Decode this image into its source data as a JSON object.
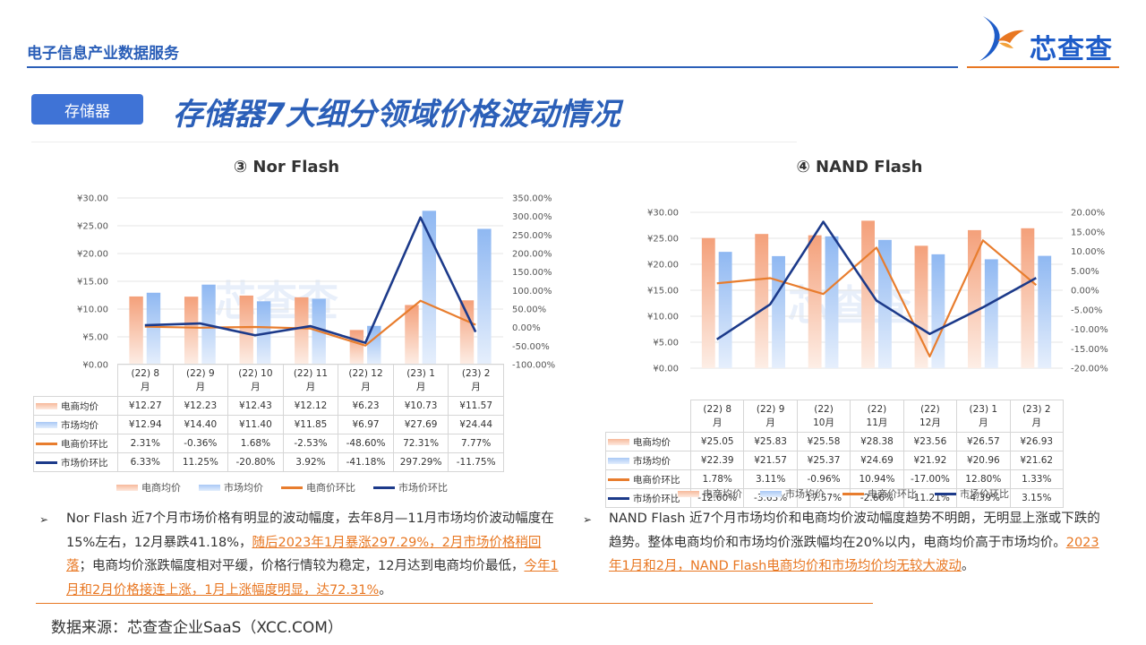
{
  "header": {
    "brand": "电子信息产业数据服务",
    "logo_text": "芯查查"
  },
  "tag": "存储器",
  "title": "存储器7大细分领域价格波动情况",
  "watermark": "芯查查",
  "legend": {
    "items": [
      "电商均价",
      "市场均价",
      "电商价环比",
      "市场价环比"
    ]
  },
  "charts": [
    {
      "title": "③ Nor Flash",
      "categories": [
        "(22) 8月",
        "(22) 9月",
        "(22) 10月",
        "(22) 11月",
        "(22) 12月",
        "(23) 1月",
        "(23) 2月"
      ],
      "cat_line1": [
        "(22) 8",
        "(22) 9",
        "(22) 10",
        "(22) 11",
        "(22) 12",
        "(23) 1",
        "(23) 2"
      ],
      "cat_line2": [
        "月",
        "月",
        "月",
        "月",
        "月",
        "月",
        "月"
      ],
      "left_ticks": [
        "¥30.00",
        "¥25.00",
        "¥20.00",
        "¥15.00",
        "¥10.00",
        "¥5.00",
        "¥0.00"
      ],
      "right_ticks": [
        "350.00%",
        "300.00%",
        "250.00%",
        "200.00%",
        "150.00%",
        "100.00%",
        "50.00%",
        "0.00%",
        "-50.00%",
        "-100.00%"
      ],
      "rows": [
        {
          "label": "电商均价",
          "cells": [
            "¥12.27",
            "¥12.23",
            "¥12.43",
            "¥12.12",
            "¥6.23",
            "¥10.73",
            "¥11.57"
          ]
        },
        {
          "label": "市场均价",
          "cells": [
            "¥12.94",
            "¥14.40",
            "¥11.40",
            "¥11.85",
            "¥6.97",
            "¥27.69",
            "¥24.44"
          ]
        },
        {
          "label": "电商价环比",
          "cells": [
            "2.31%",
            "-0.36%",
            "1.68%",
            "-2.53%",
            "-48.60%",
            "72.31%",
            "7.77%"
          ]
        },
        {
          "label": "市场价环比",
          "cells": [
            "6.33%",
            "11.25%",
            "-20.80%",
            "3.92%",
            "-41.18%",
            "297.29%",
            "-11.75%"
          ]
        }
      ]
    },
    {
      "title": "④ NAND Flash",
      "categories": [
        "(22) 8月",
        "(22) 9月",
        "(22) 10月",
        "(22) 11月",
        "(22) 12月",
        "(23) 1月",
        "(23) 2月"
      ],
      "cat_line1": [
        "(22) 8",
        "(22) 9",
        "(22)",
        "(22)",
        "(22)",
        "(23) 1",
        "(23) 2"
      ],
      "cat_line2": [
        "月",
        "月",
        "10月",
        "11月",
        "12月",
        "月",
        "月"
      ],
      "left_ticks": [
        "¥30.00",
        "¥25.00",
        "¥20.00",
        "¥15.00",
        "¥10.00",
        "¥5.00",
        "¥0.00"
      ],
      "right_ticks": [
        "20.00%",
        "15.00%",
        "10.00%",
        "5.00%",
        "0.00%",
        "-5.00%",
        "-10.00%",
        "-15.00%",
        "-20.00%"
      ],
      "rows": [
        {
          "label": "电商均价",
          "cells": [
            "¥25.05",
            "¥25.83",
            "¥25.58",
            "¥28.38",
            "¥23.56",
            "¥26.57",
            "¥26.93"
          ]
        },
        {
          "label": "市场均价",
          "cells": [
            "¥22.39",
            "¥21.57",
            "¥25.37",
            "¥24.69",
            "¥21.92",
            "¥20.96",
            "¥21.62"
          ]
        },
        {
          "label": "电商价环比",
          "cells": [
            "1.78%",
            "3.11%",
            "-0.96%",
            "10.94%",
            "-17.00%",
            "12.80%",
            "1.33%"
          ]
        },
        {
          "label": "市场价环比",
          "cells": [
            "-12.60%",
            "-3.63%",
            "17.57%",
            "-2.66%",
            "-11.21%",
            "-4.39%",
            "3.15%"
          ]
        }
      ]
    }
  ],
  "chart_data": [
    {
      "type": "bar",
      "title": "③ Nor Flash",
      "categories": [
        "(22) 8月",
        "(22) 9月",
        "(22) 10月",
        "(22) 11月",
        "(22) 12月",
        "(23) 1月",
        "(23) 2月"
      ],
      "series": [
        {
          "name": "电商均价",
          "type": "bar",
          "axis": "left",
          "values": [
            12.27,
            12.23,
            12.43,
            12.12,
            6.23,
            10.73,
            11.57
          ]
        },
        {
          "name": "市场均价",
          "type": "bar",
          "axis": "left",
          "values": [
            12.94,
            14.4,
            11.4,
            11.85,
            6.97,
            27.69,
            24.44
          ]
        },
        {
          "name": "电商价环比",
          "type": "line",
          "axis": "right",
          "values": [
            2.31,
            -0.36,
            1.68,
            -2.53,
            -48.6,
            72.31,
            7.77
          ]
        },
        {
          "name": "市场价环比",
          "type": "line",
          "axis": "right",
          "values": [
            6.33,
            11.25,
            -20.8,
            3.92,
            -41.18,
            297.29,
            -11.75
          ]
        }
      ],
      "ylim": [
        0,
        30
      ],
      "y2lim": [
        -100,
        350
      ],
      "legend": "bottom",
      "colors": {
        "bar1": "#f4a07a",
        "bar2": "#8fb8f2",
        "line1": "#e87d2e",
        "line2": "#1c3a8a"
      }
    },
    {
      "type": "bar",
      "title": "④ NAND Flash",
      "categories": [
        "(22) 8月",
        "(22) 9月",
        "(22) 10月",
        "(22) 11月",
        "(22) 12月",
        "(23) 1月",
        "(23) 2月"
      ],
      "series": [
        {
          "name": "电商均价",
          "type": "bar",
          "axis": "left",
          "values": [
            25.05,
            25.83,
            25.58,
            28.38,
            23.56,
            26.57,
            26.93
          ]
        },
        {
          "name": "市场均价",
          "type": "bar",
          "axis": "left",
          "values": [
            22.39,
            21.57,
            25.37,
            24.69,
            21.92,
            20.96,
            21.62
          ]
        },
        {
          "name": "电商价环比",
          "type": "line",
          "axis": "right",
          "values": [
            1.78,
            3.11,
            -0.96,
            10.94,
            -17.0,
            12.8,
            1.33
          ]
        },
        {
          "name": "市场价环比",
          "type": "line",
          "axis": "right",
          "values": [
            -12.6,
            -3.63,
            17.57,
            -2.66,
            -11.21,
            -4.39,
            3.15
          ]
        }
      ],
      "ylim": [
        0,
        30
      ],
      "y2lim": [
        -20,
        20
      ],
      "legend": "bottom",
      "colors": {
        "bar1": "#f4a07a",
        "bar2": "#8fb8f2",
        "line1": "#e87d2e",
        "line2": "#1c3a8a"
      }
    }
  ],
  "text": {
    "bullet": "➢",
    "left": {
      "p1": "Nor Flash 近7个月市场价格有明显的波动幅度，去年8月—11月市场均价波动幅度在15%左右，12月暴跌41.18%，",
      "u1": "随后2023年1月暴涨297.29%，2月市场价格稍回落",
      "p2": "；电商均价涨跌幅度相对平缓，价格行情较为稳定，12月达到电商均价最低，",
      "u2": "今年1月和2月价格接连上涨，1月上涨幅度明显，达72.31%",
      "p3": "。"
    },
    "right": {
      "p1": "NAND Flash 近7个月市场均价和电商均价波动幅度趋势不明朗，无明显上涨或下跌的趋势。整体电商均价和市场均价涨跌幅均在20%以内，电商均价高于市场均价。",
      "u1": "2023年1月和2月，NAND Flash电商均价和市场均价均无较大波动",
      "p2": "。"
    }
  },
  "source": "数据来源：芯查查企业SaaS（XCC.COM）"
}
